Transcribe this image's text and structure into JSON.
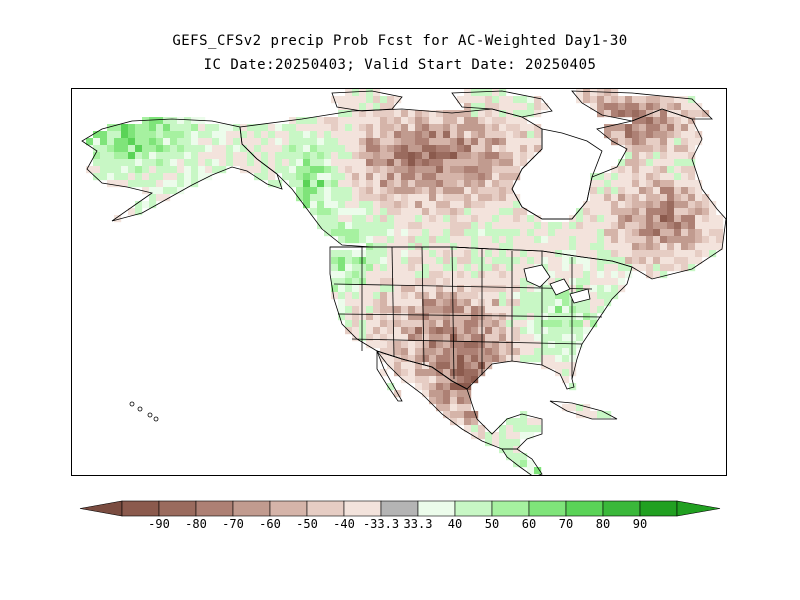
{
  "title": {
    "line1": "GEFS_CFSv2 precip Prob Fcst for AC-Weighted Day1-30",
    "line2": "IC Date:20250403; Valid Start Date: 20250405"
  },
  "map": {
    "region": "North America",
    "ocean_color": "#ffffff",
    "coastline_color": "#000000",
    "dominant_signal": "below-normal precipitation over much of Canada, central/southern US and Mexico; above-normal over Pacific Northwest, Alaska coast, eastern US",
    "note_hudson_bay": "unshaded water"
  },
  "colorbar": {
    "labels": [
      "-90",
      "-80",
      "-70",
      "-60",
      "-50",
      "-40",
      "-33.3",
      "33.3",
      "40",
      "50",
      "60",
      "70",
      "80",
      "90"
    ],
    "colors": [
      "#8b5a4d",
      "#9a6b5e",
      "#ad8074",
      "#c19b8f",
      "#d5b4a9",
      "#e6cdc4",
      "#f3e3dc",
      "#b4b4b4",
      "#ecfceb",
      "#c8f7c5",
      "#a6f1a0",
      "#7fe47a",
      "#5ad357",
      "#3ab83a",
      "#21a021"
    ],
    "left_arrow_color": "#7a4c40",
    "right_arrow_color": "#21a021"
  }
}
